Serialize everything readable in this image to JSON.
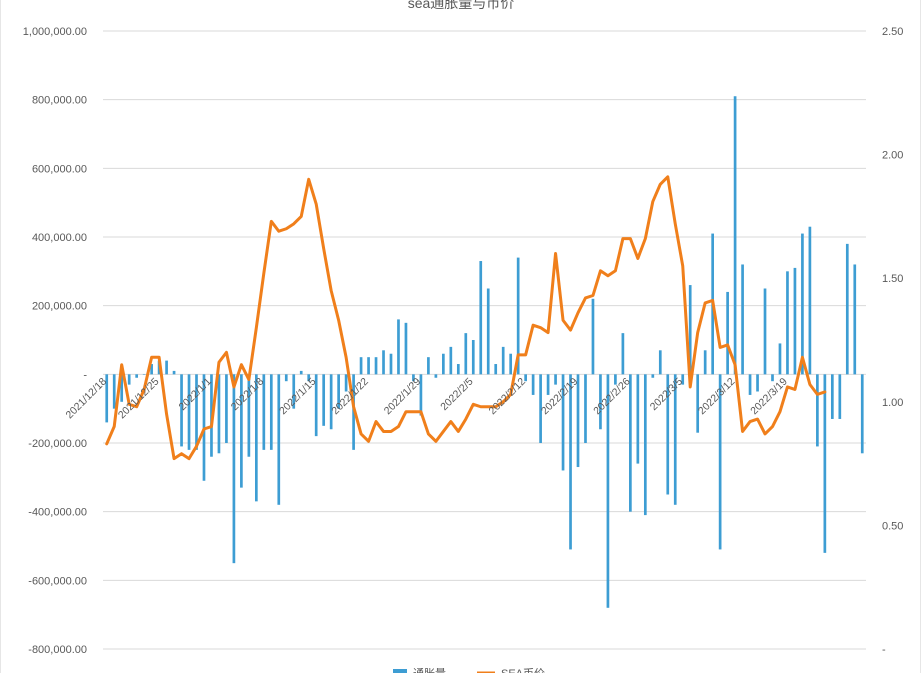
{
  "chart_data": {
    "type": "bar+line",
    "title": "sea通胀量与币价",
    "y_left": {
      "ylim": [
        -800000,
        1000000
      ],
      "ticks": [
        -800000,
        -600000,
        -400000,
        -200000,
        0,
        200000,
        400000,
        600000,
        800000,
        1000000
      ],
      "tick_labels": [
        "-800,000.00",
        "-600,000.00",
        "-400,000.00",
        "-200,000.00",
        "-",
        "200,000.00",
        "400,000.00",
        "600,000.00",
        "800,000.00",
        "1,000,000.00"
      ]
    },
    "y_right": {
      "ylim": [
        0,
        2.5
      ],
      "ticks": [
        0,
        0.5,
        1.0,
        1.5,
        2.0,
        2.5
      ],
      "tick_labels": [
        "-",
        "0.50",
        "1.00",
        "1.50",
        "2.00",
        "2.50"
      ]
    },
    "x_tick_labels": [
      "2021/12/18",
      "2021/12/25",
      "2022/1/1",
      "2022/1/8",
      "2022/1/15",
      "2022/1/22",
      "2022/1/29",
      "2022/2/5",
      "2022/2/12",
      "2022/2/19",
      "2022/2/26",
      "2022/3/5",
      "2022/3/12",
      "2022/3/19"
    ],
    "x_tick_index": [
      0,
      7,
      14,
      21,
      28,
      35,
      42,
      49,
      56,
      63,
      70,
      77,
      84,
      91
    ],
    "series": [
      {
        "name": "通胀量",
        "type": "bar",
        "color": "#3d9dd3",
        "axis": "left",
        "values": [
          -140000,
          -100000,
          -80000,
          -30000,
          -10000,
          0,
          30000,
          40000,
          40000,
          10000,
          -210000,
          -220000,
          -220000,
          -310000,
          -240000,
          -230000,
          -200000,
          -550000,
          -330000,
          -240000,
          -370000,
          -220000,
          -220000,
          -380000,
          -20000,
          -100000,
          10000,
          -20000,
          -180000,
          -150000,
          -160000,
          -100000,
          -50000,
          -220000,
          50000,
          50000,
          50000,
          70000,
          60000,
          160000,
          150000,
          -20000,
          -120000,
          50000,
          -10000,
          60000,
          80000,
          30000,
          120000,
          100000,
          330000,
          250000,
          30000,
          80000,
          60000,
          340000,
          -20000,
          -60000,
          -200000,
          -60000,
          -30000,
          -280000,
          -510000,
          -270000,
          -200000,
          220000,
          -160000,
          -680000,
          -30000,
          120000,
          -400000,
          -260000,
          -410000,
          -10000,
          70000,
          -350000,
          -380000,
          -30000,
          260000,
          -170000,
          70000,
          410000,
          -510000,
          240000,
          810000,
          320000,
          -60000,
          -50000,
          250000,
          -20000,
          90000,
          300000,
          310000,
          410000,
          430000,
          -210000,
          -520000,
          -130000,
          -130000,
          380000,
          320000,
          -230000
        ]
      },
      {
        "name": "SEA币价",
        "type": "line",
        "color": "#f07f1b",
        "axis": "right",
        "values": [
          0.83,
          0.9,
          1.15,
          0.99,
          0.98,
          1.05,
          1.18,
          1.18,
          0.95,
          0.77,
          0.79,
          0.77,
          0.82,
          0.89,
          0.9,
          1.16,
          1.2,
          1.06,
          1.15,
          1.09,
          1.3,
          1.52,
          1.73,
          1.69,
          1.7,
          1.72,
          1.75,
          1.9,
          1.8,
          1.62,
          1.45,
          1.33,
          1.18,
          0.98,
          0.87,
          0.84,
          0.92,
          0.88,
          0.88,
          0.9,
          0.96,
          0.96,
          0.96,
          0.87,
          0.84,
          0.88,
          0.92,
          0.88,
          0.93,
          0.99,
          0.98,
          0.98,
          0.98,
          1.0,
          1.03,
          1.19,
          1.19,
          1.31,
          1.3,
          1.28,
          1.6,
          1.33,
          1.29,
          1.36,
          1.42,
          1.43,
          1.53,
          1.51,
          1.53,
          1.66,
          1.66,
          1.58,
          1.66,
          1.81,
          1.88,
          1.91,
          1.72,
          1.55,
          1.06,
          1.28,
          1.4,
          1.41,
          1.22,
          1.23,
          1.15,
          0.88,
          0.92,
          0.93,
          0.87,
          0.9,
          0.96,
          1.06,
          1.05,
          1.18,
          1.07,
          1.03,
          1.04
        ]
      }
    ],
    "grid": true,
    "legend": "bottom",
    "legend_entries": [
      "通胀量",
      "SEA币价"
    ]
  }
}
